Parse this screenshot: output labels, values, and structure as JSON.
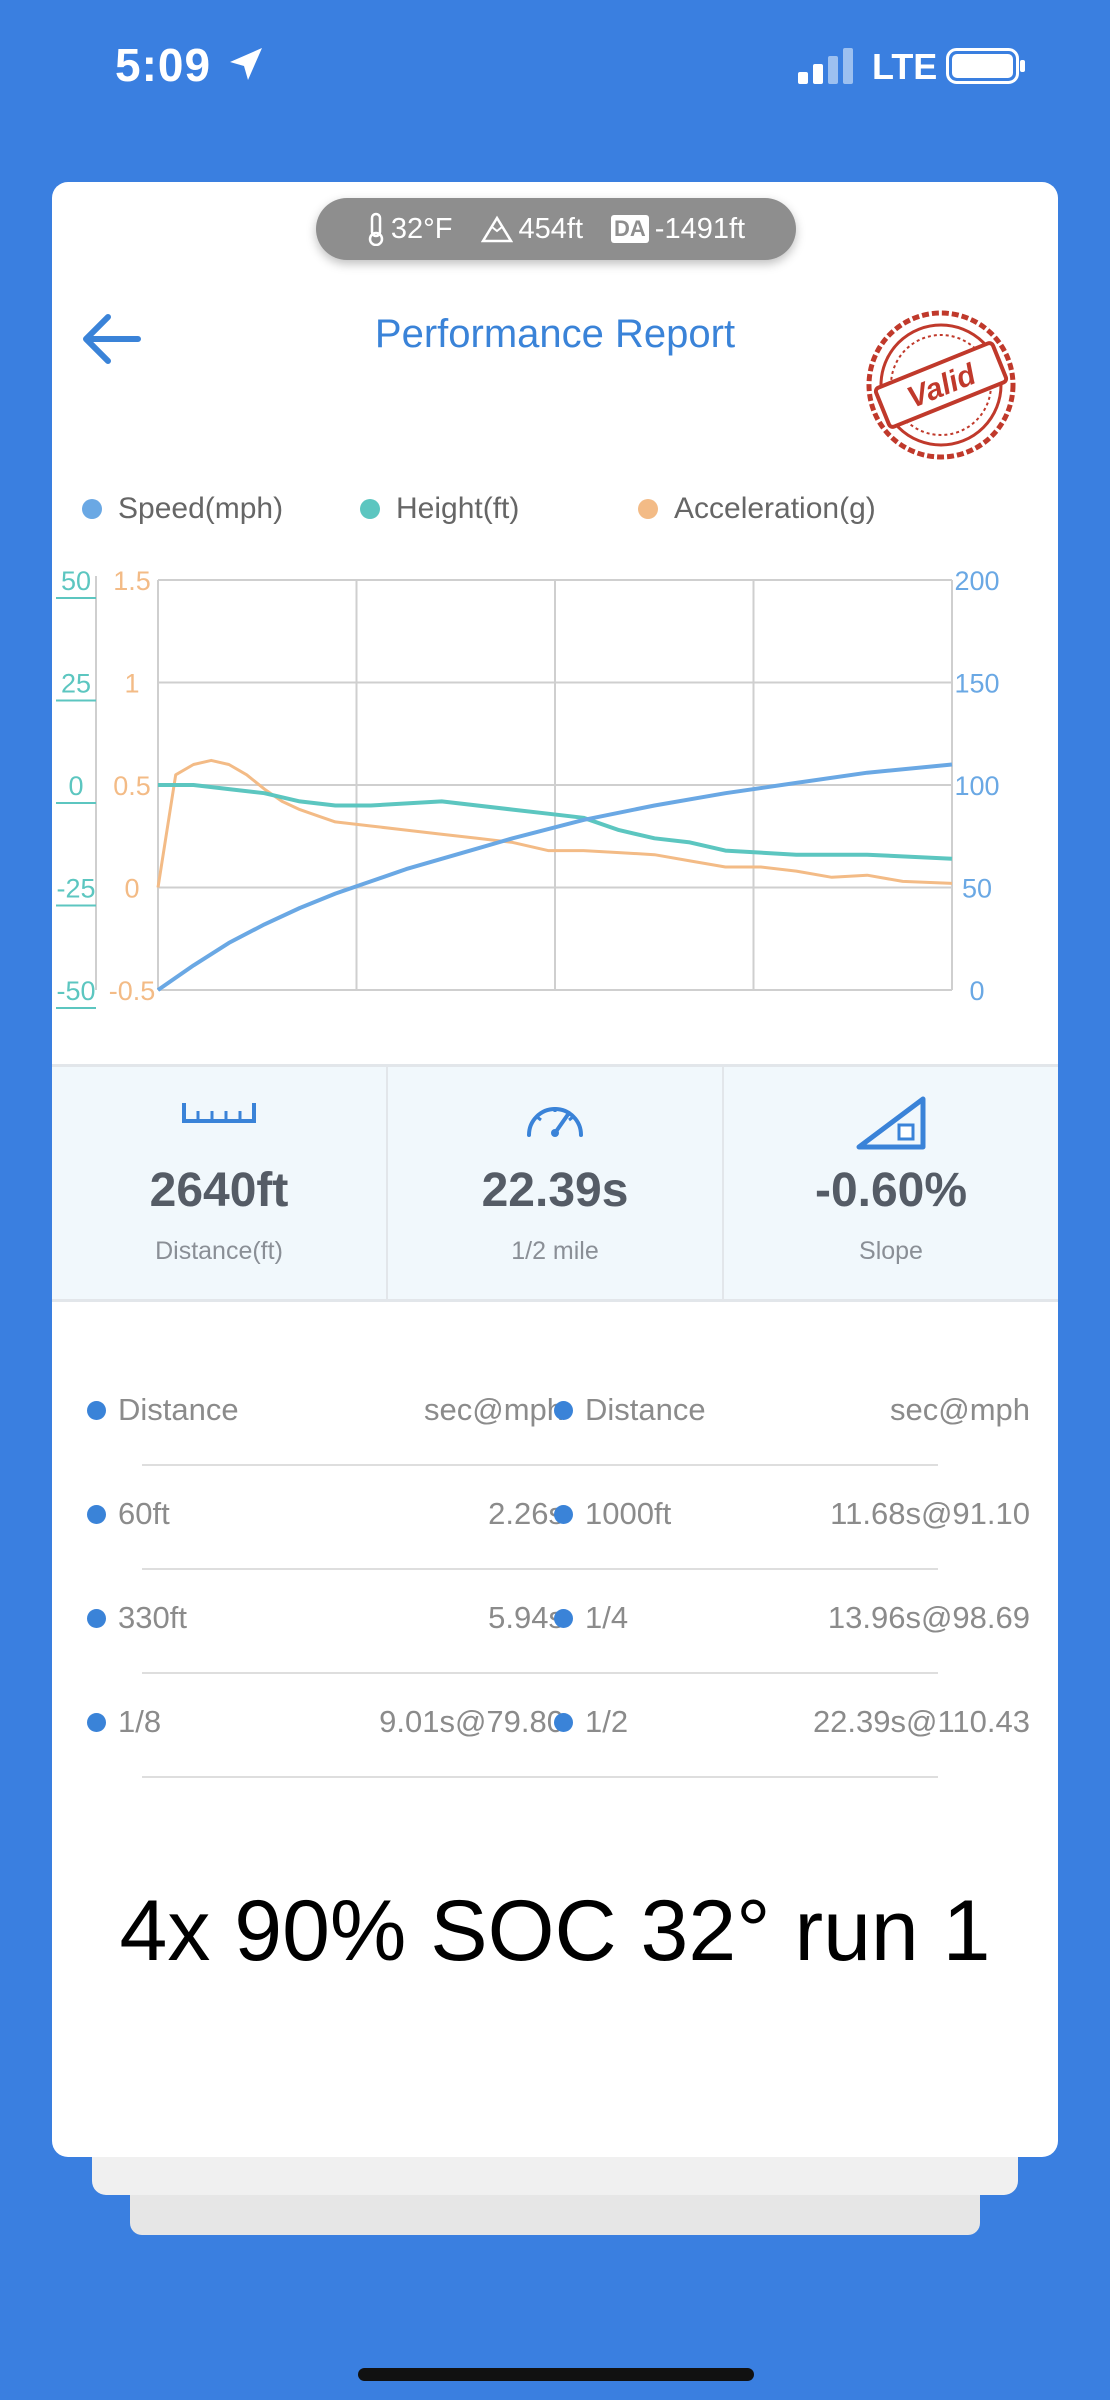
{
  "status_bar": {
    "time": "5:09",
    "network": "LTE"
  },
  "env": {
    "temperature": "32°F",
    "altitude": "454ft",
    "da_label": "DA",
    "density_altitude": "-1491ft"
  },
  "header": {
    "title": "Performance Report",
    "stamp": "Valid"
  },
  "legend": {
    "speed": "Speed(mph)",
    "height": "Height(ft)",
    "acceleration": "Acceleration(g)"
  },
  "colors": {
    "speed": "#6aa8e4",
    "height": "#5cc6c0",
    "acceleration": "#f3bb86",
    "accent": "#3a83d8",
    "background": "#3a7fe0",
    "stamp": "#c0392b"
  },
  "chart_data": {
    "type": "line",
    "grid": true,
    "axes": {
      "height_axis": {
        "ticks": [
          "50",
          "25",
          "0",
          "-25",
          "-50"
        ],
        "range": [
          -50,
          50
        ],
        "color": "#5cc6c0"
      },
      "acceleration_axis": {
        "ticks": [
          "1.5",
          "1",
          "0.5",
          "0",
          "-0.5"
        ],
        "range": [
          -0.5,
          1.5
        ],
        "color": "#f3bb86"
      },
      "speed_axis": {
        "ticks": [
          "200",
          "150",
          "100",
          "50",
          "0"
        ],
        "range": [
          0,
          200
        ],
        "color": "#6aa8e4"
      }
    },
    "x_range": [
      0,
      22.39
    ],
    "series": [
      {
        "name": "Speed(mph)",
        "axis": "speed_axis",
        "x": [
          0,
          1,
          2,
          3,
          4,
          5,
          6,
          7,
          8,
          9,
          10,
          12,
          14,
          16,
          18,
          20,
          22.39
        ],
        "values": [
          0,
          12,
          23,
          32,
          40,
          47,
          53,
          59,
          64,
          69,
          74,
          83,
          90,
          96,
          101,
          106,
          110
        ]
      },
      {
        "name": "Height(ft)",
        "axis": "height_axis",
        "x": [
          0,
          1,
          2,
          3,
          4,
          5,
          6,
          8,
          10,
          11,
          12,
          13,
          14,
          15,
          16,
          18,
          20,
          22.39
        ],
        "values": [
          0,
          0,
          -1,
          -2,
          -4,
          -5,
          -5,
          -4,
          -6,
          -7,
          -8,
          -11,
          -13,
          -14,
          -16,
          -17,
          -17,
          -18
        ]
      },
      {
        "name": "Acceleration(g)",
        "axis": "acceleration_axis",
        "x": [
          0,
          0.5,
          1,
          1.5,
          2,
          2.5,
          3,
          3.5,
          4,
          4.5,
          5,
          6,
          7,
          8,
          9,
          10,
          11,
          12,
          13,
          14,
          15,
          16,
          17,
          18,
          19,
          20,
          21,
          22.39
        ],
        "values": [
          0,
          0.55,
          0.6,
          0.62,
          0.6,
          0.55,
          0.48,
          0.42,
          0.38,
          0.35,
          0.32,
          0.3,
          0.28,
          0.26,
          0.24,
          0.22,
          0.18,
          0.18,
          0.17,
          0.16,
          0.13,
          0.1,
          0.1,
          0.08,
          0.05,
          0.06,
          0.03,
          0.02
        ]
      }
    ]
  },
  "stats": [
    {
      "icon": "ruler-icon",
      "value": "2640ft",
      "label": "Distance(ft)"
    },
    {
      "icon": "speedometer-icon",
      "value": "22.39s",
      "label": "1/2 mile"
    },
    {
      "icon": "slope-icon",
      "value": "-0.60%",
      "label": "Slope"
    }
  ],
  "splits": {
    "header": {
      "left_label": "Distance",
      "left_value": "sec@mph",
      "right_label": "Distance",
      "right_value": "sec@mph"
    },
    "rows": [
      {
        "left_label": "60ft",
        "left_value": "2.26s",
        "right_label": "1000ft",
        "right_value": "11.68s@91.10"
      },
      {
        "left_label": "330ft",
        "left_value": "5.94s",
        "right_label": "1/4",
        "right_value": "13.96s@98.69"
      },
      {
        "left_label": "1/8",
        "left_value": "9.01s@79.80",
        "right_label": "1/2",
        "right_value": "22.39s@110.43"
      }
    ]
  },
  "note": "4x 90% SOC 32° run 1"
}
